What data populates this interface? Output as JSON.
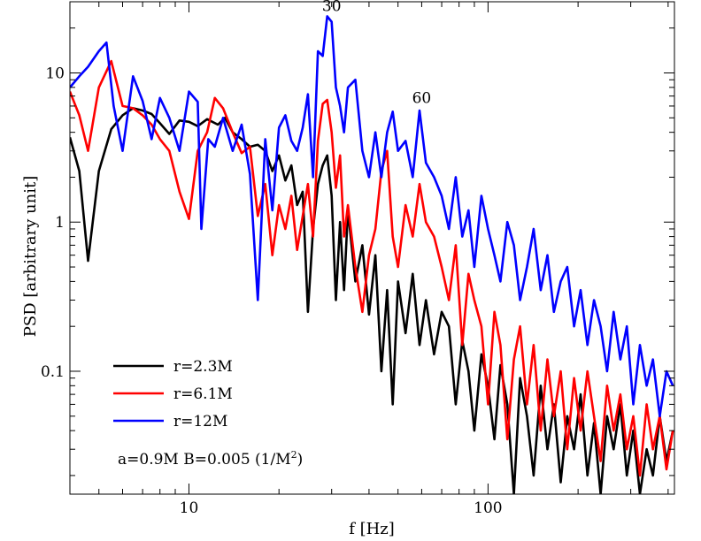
{
  "chart_data": {
    "type": "line",
    "xscale": "log",
    "yscale": "log",
    "xlabel": "f [Hz]",
    "ylabel": "PSD [arbitrary unit]",
    "xlim": [
      4,
      420
    ],
    "ylim": [
      0.015,
      30
    ],
    "x_ticks": [
      {
        "value": 10,
        "label": "10"
      },
      {
        "value": 100,
        "label": "100"
      }
    ],
    "y_ticks": [
      {
        "value": 0.1,
        "label": "0.1"
      },
      {
        "value": 1,
        "label": "1"
      },
      {
        "value": 10,
        "label": "10"
      }
    ],
    "series": [
      {
        "name": "r=2.3M",
        "color": "#000000",
        "points": [
          [
            4,
            3.7
          ],
          [
            4.3,
            2.2
          ],
          [
            4.6,
            0.55
          ],
          [
            5,
            2.2
          ],
          [
            5.5,
            4.2
          ],
          [
            6,
            5.2
          ],
          [
            6.5,
            5.8
          ],
          [
            7,
            5.6
          ],
          [
            7.5,
            5.3
          ],
          [
            8,
            4.6
          ],
          [
            8.6,
            3.9
          ],
          [
            9.3,
            4.8
          ],
          [
            10,
            4.7
          ],
          [
            10.7,
            4.4
          ],
          [
            11.5,
            4.9
          ],
          [
            12.5,
            4.5
          ],
          [
            13.2,
            5.0
          ],
          [
            14,
            4.0
          ],
          [
            15,
            3.6
          ],
          [
            16,
            3.2
          ],
          [
            17,
            3.3
          ],
          [
            18,
            3.0
          ],
          [
            19,
            2.2
          ],
          [
            20,
            2.8
          ],
          [
            21,
            1.9
          ],
          [
            22,
            2.4
          ],
          [
            23,
            1.3
          ],
          [
            24,
            1.6
          ],
          [
            25,
            0.25
          ],
          [
            26,
            0.9
          ],
          [
            27,
            1.8
          ],
          [
            28,
            2.4
          ],
          [
            29,
            2.8
          ],
          [
            30,
            1.5
          ],
          [
            31,
            0.3
          ],
          [
            32,
            1.0
          ],
          [
            33,
            0.35
          ],
          [
            34,
            1.2
          ],
          [
            36,
            0.4
          ],
          [
            38,
            0.7
          ],
          [
            40,
            0.24
          ],
          [
            42,
            0.6
          ],
          [
            44,
            0.1
          ],
          [
            46,
            0.35
          ],
          [
            48,
            0.06
          ],
          [
            50,
            0.4
          ],
          [
            53,
            0.18
          ],
          [
            56,
            0.45
          ],
          [
            59,
            0.15
          ],
          [
            62,
            0.3
          ],
          [
            66,
            0.13
          ],
          [
            70,
            0.25
          ],
          [
            74,
            0.2
          ],
          [
            78,
            0.06
          ],
          [
            82,
            0.16
          ],
          [
            86,
            0.1
          ],
          [
            90,
            0.04
          ],
          [
            95,
            0.13
          ],
          [
            100,
            0.08
          ],
          [
            105,
            0.035
          ],
          [
            110,
            0.11
          ],
          [
            116,
            0.06
          ],
          [
            122,
            0.015
          ],
          [
            128,
            0.09
          ],
          [
            135,
            0.05
          ],
          [
            142,
            0.02
          ],
          [
            150,
            0.08
          ],
          [
            158,
            0.03
          ],
          [
            166,
            0.06
          ],
          [
            175,
            0.018
          ],
          [
            184,
            0.05
          ],
          [
            194,
            0.03
          ],
          [
            204,
            0.07
          ],
          [
            215,
            0.02
          ],
          [
            226,
            0.045
          ],
          [
            238,
            0.015
          ],
          [
            250,
            0.05
          ],
          [
            263,
            0.03
          ],
          [
            277,
            0.06
          ],
          [
            291,
            0.02
          ],
          [
            306,
            0.04
          ],
          [
            322,
            0.015
          ],
          [
            339,
            0.03
          ],
          [
            356,
            0.02
          ],
          [
            375,
            0.05
          ],
          [
            395,
            0.025
          ],
          [
            415,
            0.04
          ]
        ]
      },
      {
        "name": "r=6.1M",
        "color": "#ff0000",
        "points": [
          [
            4,
            7.5
          ],
          [
            4.3,
            5.2
          ],
          [
            4.6,
            3.0
          ],
          [
            5,
            8.0
          ],
          [
            5.5,
            12.0
          ],
          [
            6,
            6.0
          ],
          [
            6.5,
            5.8
          ],
          [
            7,
            5.2
          ],
          [
            7.5,
            4.5
          ],
          [
            8,
            3.6
          ],
          [
            8.6,
            3.0
          ],
          [
            9.3,
            1.6
          ],
          [
            10,
            1.05
          ],
          [
            10.7,
            3.0
          ],
          [
            11.5,
            4.0
          ],
          [
            12.2,
            6.8
          ],
          [
            13,
            5.8
          ],
          [
            14,
            4.0
          ],
          [
            15,
            2.9
          ],
          [
            16,
            3.2
          ],
          [
            17,
            1.1
          ],
          [
            18,
            1.8
          ],
          [
            19,
            0.6
          ],
          [
            20,
            1.3
          ],
          [
            21,
            0.9
          ],
          [
            22,
            1.5
          ],
          [
            23,
            0.65
          ],
          [
            24,
            1.1
          ],
          [
            25,
            1.8
          ],
          [
            26,
            0.8
          ],
          [
            27,
            3.5
          ],
          [
            28,
            6.2
          ],
          [
            29,
            6.6
          ],
          [
            30,
            4.0
          ],
          [
            31,
            1.7
          ],
          [
            32,
            2.8
          ],
          [
            33,
            0.8
          ],
          [
            34,
            1.3
          ],
          [
            36,
            0.5
          ],
          [
            38,
            0.25
          ],
          [
            40,
            0.6
          ],
          [
            42,
            0.9
          ],
          [
            44,
            2.2
          ],
          [
            46,
            3.0
          ],
          [
            48,
            0.8
          ],
          [
            50,
            0.5
          ],
          [
            53,
            1.3
          ],
          [
            56,
            0.8
          ],
          [
            59,
            1.8
          ],
          [
            62,
            1.0
          ],
          [
            66,
            0.8
          ],
          [
            70,
            0.5
          ],
          [
            74,
            0.3
          ],
          [
            78,
            0.7
          ],
          [
            82,
            0.15
          ],
          [
            86,
            0.45
          ],
          [
            90,
            0.3
          ],
          [
            95,
            0.2
          ],
          [
            100,
            0.06
          ],
          [
            105,
            0.25
          ],
          [
            110,
            0.15
          ],
          [
            116,
            0.035
          ],
          [
            122,
            0.12
          ],
          [
            128,
            0.2
          ],
          [
            135,
            0.06
          ],
          [
            142,
            0.15
          ],
          [
            150,
            0.04
          ],
          [
            158,
            0.12
          ],
          [
            166,
            0.05
          ],
          [
            175,
            0.1
          ],
          [
            184,
            0.03
          ],
          [
            194,
            0.09
          ],
          [
            204,
            0.04
          ],
          [
            215,
            0.1
          ],
          [
            226,
            0.05
          ],
          [
            238,
            0.025
          ],
          [
            250,
            0.08
          ],
          [
            263,
            0.04
          ],
          [
            277,
            0.07
          ],
          [
            291,
            0.03
          ],
          [
            306,
            0.05
          ],
          [
            322,
            0.02
          ],
          [
            339,
            0.06
          ],
          [
            356,
            0.03
          ],
          [
            375,
            0.05
          ],
          [
            395,
            0.022
          ],
          [
            415,
            0.04
          ]
        ]
      },
      {
        "name": "r=12M",
        "color": "#0000ff",
        "points": [
          [
            4,
            8.0
          ],
          [
            4.3,
            9.5
          ],
          [
            4.6,
            11.0
          ],
          [
            5,
            14.0
          ],
          [
            5.3,
            16.0
          ],
          [
            5.6,
            6.0
          ],
          [
            6,
            3.0
          ],
          [
            6.5,
            9.5
          ],
          [
            7,
            6.5
          ],
          [
            7.5,
            3.6
          ],
          [
            8,
            6.8
          ],
          [
            8.6,
            5.0
          ],
          [
            9.3,
            3.0
          ],
          [
            10,
            7.5
          ],
          [
            10.7,
            6.4
          ],
          [
            11,
            0.9
          ],
          [
            11.6,
            3.6
          ],
          [
            12.2,
            3.2
          ],
          [
            13,
            5.0
          ],
          [
            14,
            3.0
          ],
          [
            15,
            4.5
          ],
          [
            16,
            2.1
          ],
          [
            17,
            0.3
          ],
          [
            18,
            3.6
          ],
          [
            19,
            1.2
          ],
          [
            20,
            4.3
          ],
          [
            21,
            5.2
          ],
          [
            22,
            3.5
          ],
          [
            23,
            3.0
          ],
          [
            24,
            4.3
          ],
          [
            25,
            7.2
          ],
          [
            26,
            2.0
          ],
          [
            27,
            14.0
          ],
          [
            28,
            13.0
          ],
          [
            29,
            24.0
          ],
          [
            30,
            22.0
          ],
          [
            31,
            8.0
          ],
          [
            32,
            6.0
          ],
          [
            33,
            4.0
          ],
          [
            34,
            8.0
          ],
          [
            36,
            9.0
          ],
          [
            38,
            3.0
          ],
          [
            40,
            2.0
          ],
          [
            42,
            4.0
          ],
          [
            44,
            2.0
          ],
          [
            46,
            4.0
          ],
          [
            48,
            5.5
          ],
          [
            50,
            3.0
          ],
          [
            53,
            3.5
          ],
          [
            56,
            2.0
          ],
          [
            59,
            5.6
          ],
          [
            62,
            2.5
          ],
          [
            66,
            2.0
          ],
          [
            70,
            1.5
          ],
          [
            74,
            0.9
          ],
          [
            78,
            2.0
          ],
          [
            82,
            0.8
          ],
          [
            86,
            1.2
          ],
          [
            90,
            0.5
          ],
          [
            95,
            1.5
          ],
          [
            100,
            0.9
          ],
          [
            105,
            0.6
          ],
          [
            110,
            0.4
          ],
          [
            116,
            1.0
          ],
          [
            122,
            0.7
          ],
          [
            128,
            0.3
          ],
          [
            135,
            0.5
          ],
          [
            142,
            0.9
          ],
          [
            150,
            0.35
          ],
          [
            158,
            0.6
          ],
          [
            166,
            0.25
          ],
          [
            175,
            0.4
          ],
          [
            184,
            0.5
          ],
          [
            194,
            0.2
          ],
          [
            204,
            0.35
          ],
          [
            215,
            0.15
          ],
          [
            226,
            0.3
          ],
          [
            238,
            0.2
          ],
          [
            250,
            0.1
          ],
          [
            263,
            0.25
          ],
          [
            277,
            0.12
          ],
          [
            291,
            0.2
          ],
          [
            306,
            0.06
          ],
          [
            322,
            0.15
          ],
          [
            339,
            0.08
          ],
          [
            356,
            0.12
          ],
          [
            375,
            0.05
          ],
          [
            395,
            0.1
          ],
          [
            415,
            0.08
          ]
        ]
      }
    ],
    "annotations": [
      {
        "text": "30",
        "x": 30,
        "y": 26.0
      },
      {
        "text": "60",
        "x": 60,
        "y": 6.3
      }
    ],
    "legend": {
      "placement": "lower-left",
      "entries": [
        "r=2.3M",
        "r=6.1M",
        "r=12M"
      ]
    },
    "note": {
      "prefix": "a=0.9M   B=0.005 (1/M",
      "superscript": "2",
      "suffix": ")"
    }
  }
}
